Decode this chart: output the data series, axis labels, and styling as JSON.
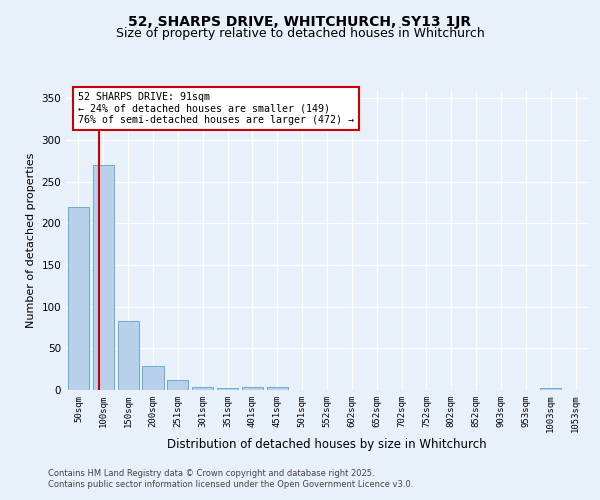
{
  "title1": "52, SHARPS DRIVE, WHITCHURCH, SY13 1JR",
  "title2": "Size of property relative to detached houses in Whitchurch",
  "xlabel": "Distribution of detached houses by size in Whitchurch",
  "ylabel": "Number of detached properties",
  "bar_labels": [
    "50sqm",
    "100sqm",
    "150sqm",
    "200sqm",
    "251sqm",
    "301sqm",
    "351sqm",
    "401sqm",
    "451sqm",
    "501sqm",
    "552sqm",
    "602sqm",
    "652sqm",
    "702sqm",
    "752sqm",
    "802sqm",
    "852sqm",
    "903sqm",
    "953sqm",
    "1003sqm",
    "1053sqm"
  ],
  "bar_values": [
    220,
    270,
    83,
    29,
    12,
    4,
    3,
    4,
    4,
    0,
    0,
    0,
    0,
    0,
    0,
    0,
    0,
    0,
    0,
    3,
    0
  ],
  "bar_color": "#b8d0ea",
  "bar_edge_color": "#6aaad4",
  "annotation_title": "52 SHARPS DRIVE: 91sqm",
  "annotation_line1": "← 24% of detached houses are smaller (149)",
  "annotation_line2": "76% of semi-detached houses are larger (472) →",
  "annotation_box_color": "#ffffff",
  "annotation_box_edge": "#cc0000",
  "vline_color": "#cc0000",
  "ylim": [
    0,
    360
  ],
  "yticks": [
    0,
    50,
    100,
    150,
    200,
    250,
    300,
    350
  ],
  "footer1": "Contains HM Land Registry data © Crown copyright and database right 2025.",
  "footer2": "Contains public sector information licensed under the Open Government Licence v3.0.",
  "bg_color": "#e8f0fa",
  "grid_color": "#ffffff",
  "title1_fontsize": 10,
  "title2_fontsize": 9
}
